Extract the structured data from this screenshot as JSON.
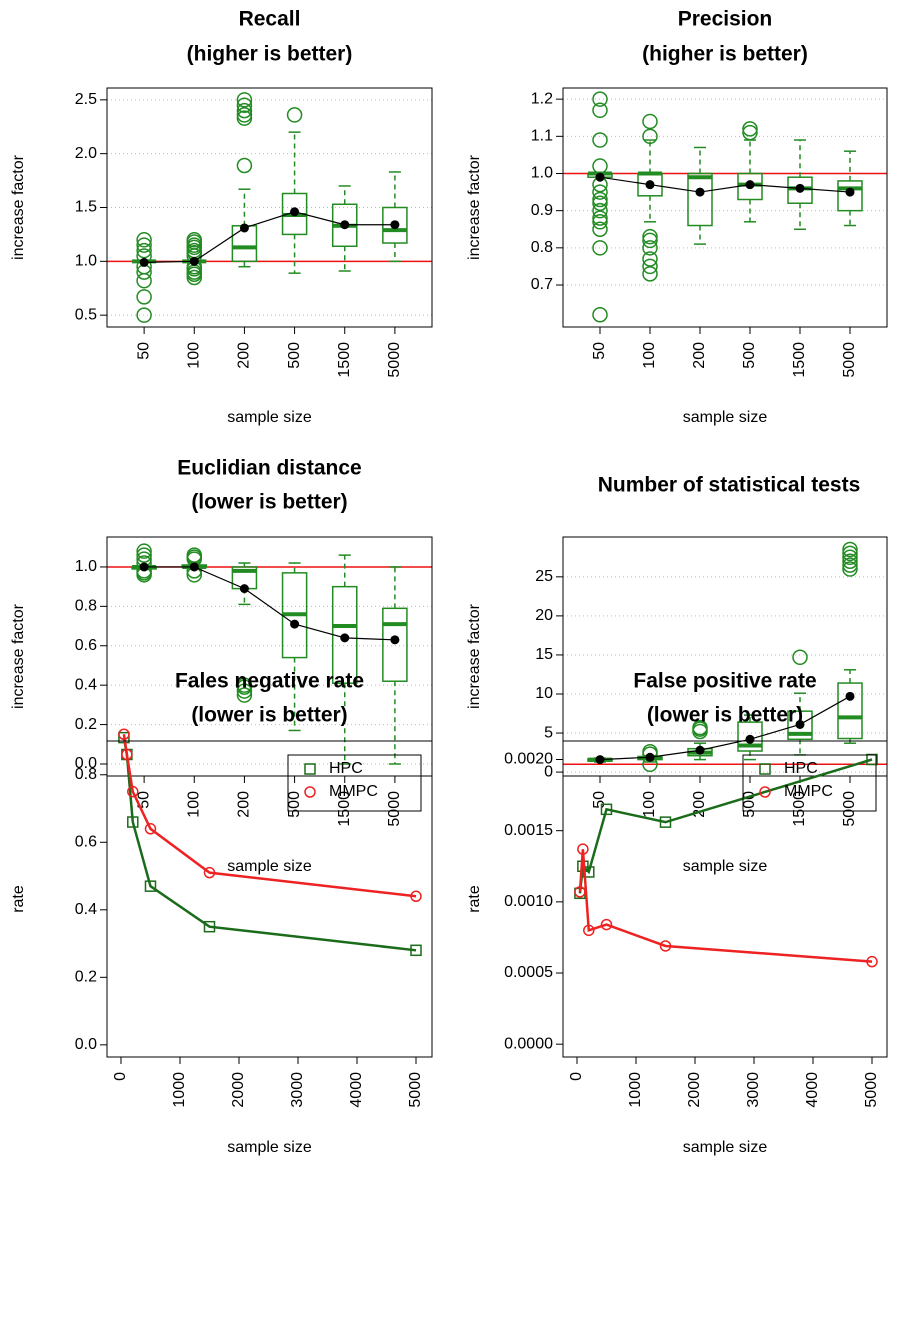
{
  "chart_data": [
    {
      "type": "box",
      "title": "Recall",
      "subtitle": "(higher is better)",
      "xlabel": "sample size",
      "ylabel": "increase factor",
      "categories": [
        "50",
        "100",
        "200",
        "500",
        "1500",
        "5000"
      ],
      "min": [
        1.0,
        1.0,
        0.95,
        0.89,
        0.91,
        1.0
      ],
      "q1": [
        1.0,
        1.0,
        1.0,
        1.25,
        1.14,
        1.17
      ],
      "median": [
        1.0,
        1.0,
        1.13,
        1.43,
        1.33,
        1.29
      ],
      "q3": [
        1.0,
        1.0,
        1.33,
        1.63,
        1.53,
        1.5
      ],
      "max": [
        1.0,
        1.0,
        1.67,
        2.2,
        1.7,
        1.83
      ],
      "outliers": [
        [
          0.5,
          0.67,
          0.82,
          0.9,
          0.95,
          1.05,
          1.1,
          1.15,
          1.2
        ],
        [
          0.85,
          0.88,
          0.9,
          0.93,
          0.95,
          1.05,
          1.08,
          1.1,
          1.13,
          1.15,
          1.18,
          1.2
        ],
        [
          1.89,
          2.33,
          2.36,
          2.4,
          2.45,
          2.5
        ],
        [
          2.36
        ],
        [],
        []
      ],
      "mean": [
        0.99,
        1.0,
        1.31,
        1.46,
        1.34,
        1.34
      ],
      "color": "#228B22",
      "mean_color": "#000000",
      "hline": 1,
      "hline_color": "#ee1111",
      "ylim": [
        0.39,
        2.61
      ],
      "yticks": [
        0.5,
        {
          "value": 1,
          "label": "1.0"
        },
        1.5,
        {
          "value": 2,
          "label": "2.0"
        },
        2.5
      ],
      "grid": true
    },
    {
      "type": "box",
      "title": "Precision",
      "subtitle": "(higher is better)",
      "xlabel": "sample size",
      "ylabel": "increase factor",
      "categories": [
        "50",
        "100",
        "200",
        "500",
        "1500",
        "5000"
      ],
      "min": [
        0.99,
        0.87,
        0.81,
        0.87,
        0.85,
        0.86
      ],
      "q1": [
        0.99,
        0.94,
        0.86,
        0.93,
        0.92,
        0.9
      ],
      "median": [
        1.0,
        1.0,
        0.99,
        0.97,
        0.96,
        0.96
      ],
      "q3": [
        1.0,
        1.0,
        1.0,
        1.0,
        0.99,
        0.98
      ],
      "max": [
        1.0,
        1.09,
        1.07,
        1.09,
        1.09,
        1.06
      ],
      "outliers": [
        [
          0.62,
          0.8,
          0.85,
          0.87,
          0.88,
          0.9,
          0.92,
          0.93,
          0.95,
          0.97,
          1.02,
          1.09,
          1.17,
          1.2
        ],
        [
          0.73,
          0.75,
          0.77,
          0.8,
          0.82,
          0.83,
          1.1,
          1.14
        ],
        [],
        [
          1.11,
          1.12
        ],
        [],
        []
      ],
      "mean": [
        0.99,
        0.97,
        0.95,
        0.97,
        0.96,
        0.95
      ],
      "color": "#228B22",
      "mean_color": "#000000",
      "hline": 1,
      "hline_color": "#ee1111",
      "ylim": [
        0.587,
        1.23
      ],
      "yticks": [
        0.7,
        0.8,
        0.9,
        {
          "value": 1,
          "label": "1.0"
        },
        1.1,
        1.2
      ],
      "grid": true
    },
    {
      "type": "box",
      "title": "Euclidian distance",
      "subtitle": "(lower is better)",
      "xlabel": "sample size",
      "ylabel": "increase factor",
      "categories": [
        "50",
        "100",
        "200",
        "500",
        "1500",
        "5000"
      ],
      "min": [
        1.0,
        0.99,
        0.81,
        0.17,
        0.0,
        0.0
      ],
      "q1": [
        0.99,
        1.0,
        0.89,
        0.54,
        0.41,
        0.42
      ],
      "median": [
        1.0,
        1.0,
        0.98,
        0.76,
        0.7,
        0.71
      ],
      "q3": [
        1.0,
        1.01,
        1.0,
        0.97,
        0.9,
        0.79
      ],
      "max": [
        1.0,
        1.02,
        1.02,
        1.02,
        1.06,
        1.0
      ],
      "outliers": [
        [
          0.96,
          0.97,
          0.98,
          1.02,
          1.04,
          1.06,
          1.08
        ],
        [
          0.96,
          0.98,
          1.04,
          1.05,
          1.06
        ],
        [
          0.35,
          0.37,
          0.39,
          0.4
        ],
        [],
        [],
        []
      ],
      "mean": [
        1.0,
        1.0,
        0.89,
        0.71,
        0.64,
        0.63
      ],
      "color": "#228B22",
      "mean_color": "#000000",
      "hline": 1,
      "hline_color": "#ee1111",
      "ylim": [
        -0.061,
        1.152
      ],
      "yticks": [
        {
          "value": 0,
          "label": "0.0"
        },
        0.2,
        0.4,
        0.6,
        0.8,
        {
          "value": 1,
          "label": "1.0"
        }
      ],
      "grid": true
    },
    {
      "type": "box",
      "title": "Number of statistical tests",
      "xlabel": "sample size",
      "ylabel": "increase factor",
      "categories": [
        "50",
        "100",
        "200",
        "500",
        "1500",
        "5000"
      ],
      "min": [
        1.3,
        1.3,
        1.6,
        1.6,
        2.2,
        3.7
      ],
      "q1": [
        1.4,
        1.6,
        2.1,
        2.7,
        4.2,
        4.3
      ],
      "median": [
        1.6,
        1.8,
        2.5,
        3.4,
        4.9,
        7.0
      ],
      "q3": [
        1.7,
        2.0,
        3.0,
        6.4,
        7.8,
        11.4
      ],
      "max": [
        1.8,
        2.1,
        3.7,
        7.3,
        10.1,
        13.1
      ],
      "outliers": [
        [],
        [
          1.0,
          2.3,
          2.6
        ],
        [
          5.2,
          5.5,
          5.7
        ],
        [],
        [
          14.7
        ],
        [
          26,
          26.5,
          27,
          27.5,
          28,
          28.5
        ]
      ],
      "mean": [
        1.6,
        1.9,
        2.8,
        4.2,
        6.1,
        9.7
      ],
      "color": "#228B22",
      "mean_color": "#000000",
      "hline": 1,
      "hline_color": "#ee1111",
      "ylim": [
        -0.5,
        30.1
      ],
      "yticks": [
        0,
        5,
        10,
        15,
        20,
        25
      ],
      "grid": true
    },
    {
      "type": "line",
      "title": "Fales negative rate",
      "subtitle": "(lower is better)",
      "xlabel": "sample size",
      "ylabel": "rate",
      "x": [
        50,
        100,
        200,
        500,
        1500,
        5000
      ],
      "series": [
        {
          "name": "HPC",
          "color": "#1a6b1a",
          "marker": "square",
          "values": [
            0.91,
            0.86,
            0.66,
            0.47,
            0.35,
            0.28
          ]
        },
        {
          "name": "MMPC",
          "color": "#ee2222",
          "marker": "circle",
          "values": [
            0.92,
            0.86,
            0.75,
            0.64,
            0.51,
            0.44
          ]
        }
      ],
      "legend": "topright",
      "xlim": [
        -237,
        5271
      ],
      "xticks": [
        0,
        1000,
        2000,
        3000,
        4000,
        5000
      ],
      "ylim": [
        -0.036,
        0.9
      ],
      "yticks": [
        {
          "value": 0,
          "label": "0.0"
        },
        0.2,
        0.4,
        0.6,
        0.8
      ],
      "grid": false
    },
    {
      "type": "line",
      "title": "False positive rate",
      "subtitle": "(lower is better)",
      "xlabel": "sample size",
      "ylabel": "rate",
      "x": [
        50,
        100,
        200,
        500,
        1500,
        5000
      ],
      "series": [
        {
          "name": "HPC",
          "color": "#1a6b1a",
          "marker": "square",
          "values": [
            0.00106,
            0.00125,
            0.00121,
            0.00165,
            0.00156,
            0.002
          ]
        },
        {
          "name": "MMPC",
          "color": "#ee2222",
          "marker": "circle",
          "values": [
            0.00107,
            0.00137,
            0.0008,
            0.00084,
            0.00069,
            0.00058
          ]
        }
      ],
      "legend": "topright",
      "xlim": [
        -237,
        5254
      ],
      "xticks": [
        0,
        1000,
        2000,
        3000,
        4000,
        5000
      ],
      "ylim": [
        -9e-05,
        0.00213
      ],
      "yticks": [
        {
          "value": 0,
          "label": "0.0000"
        },
        0.0005,
        {
          "value": 0.001,
          "label": "0.0010"
        },
        {
          "value": 0.0015,
          "label": "0.0015"
        },
        {
          "value": 0.002,
          "label": "0.0020"
        }
      ],
      "grid": false
    }
  ]
}
